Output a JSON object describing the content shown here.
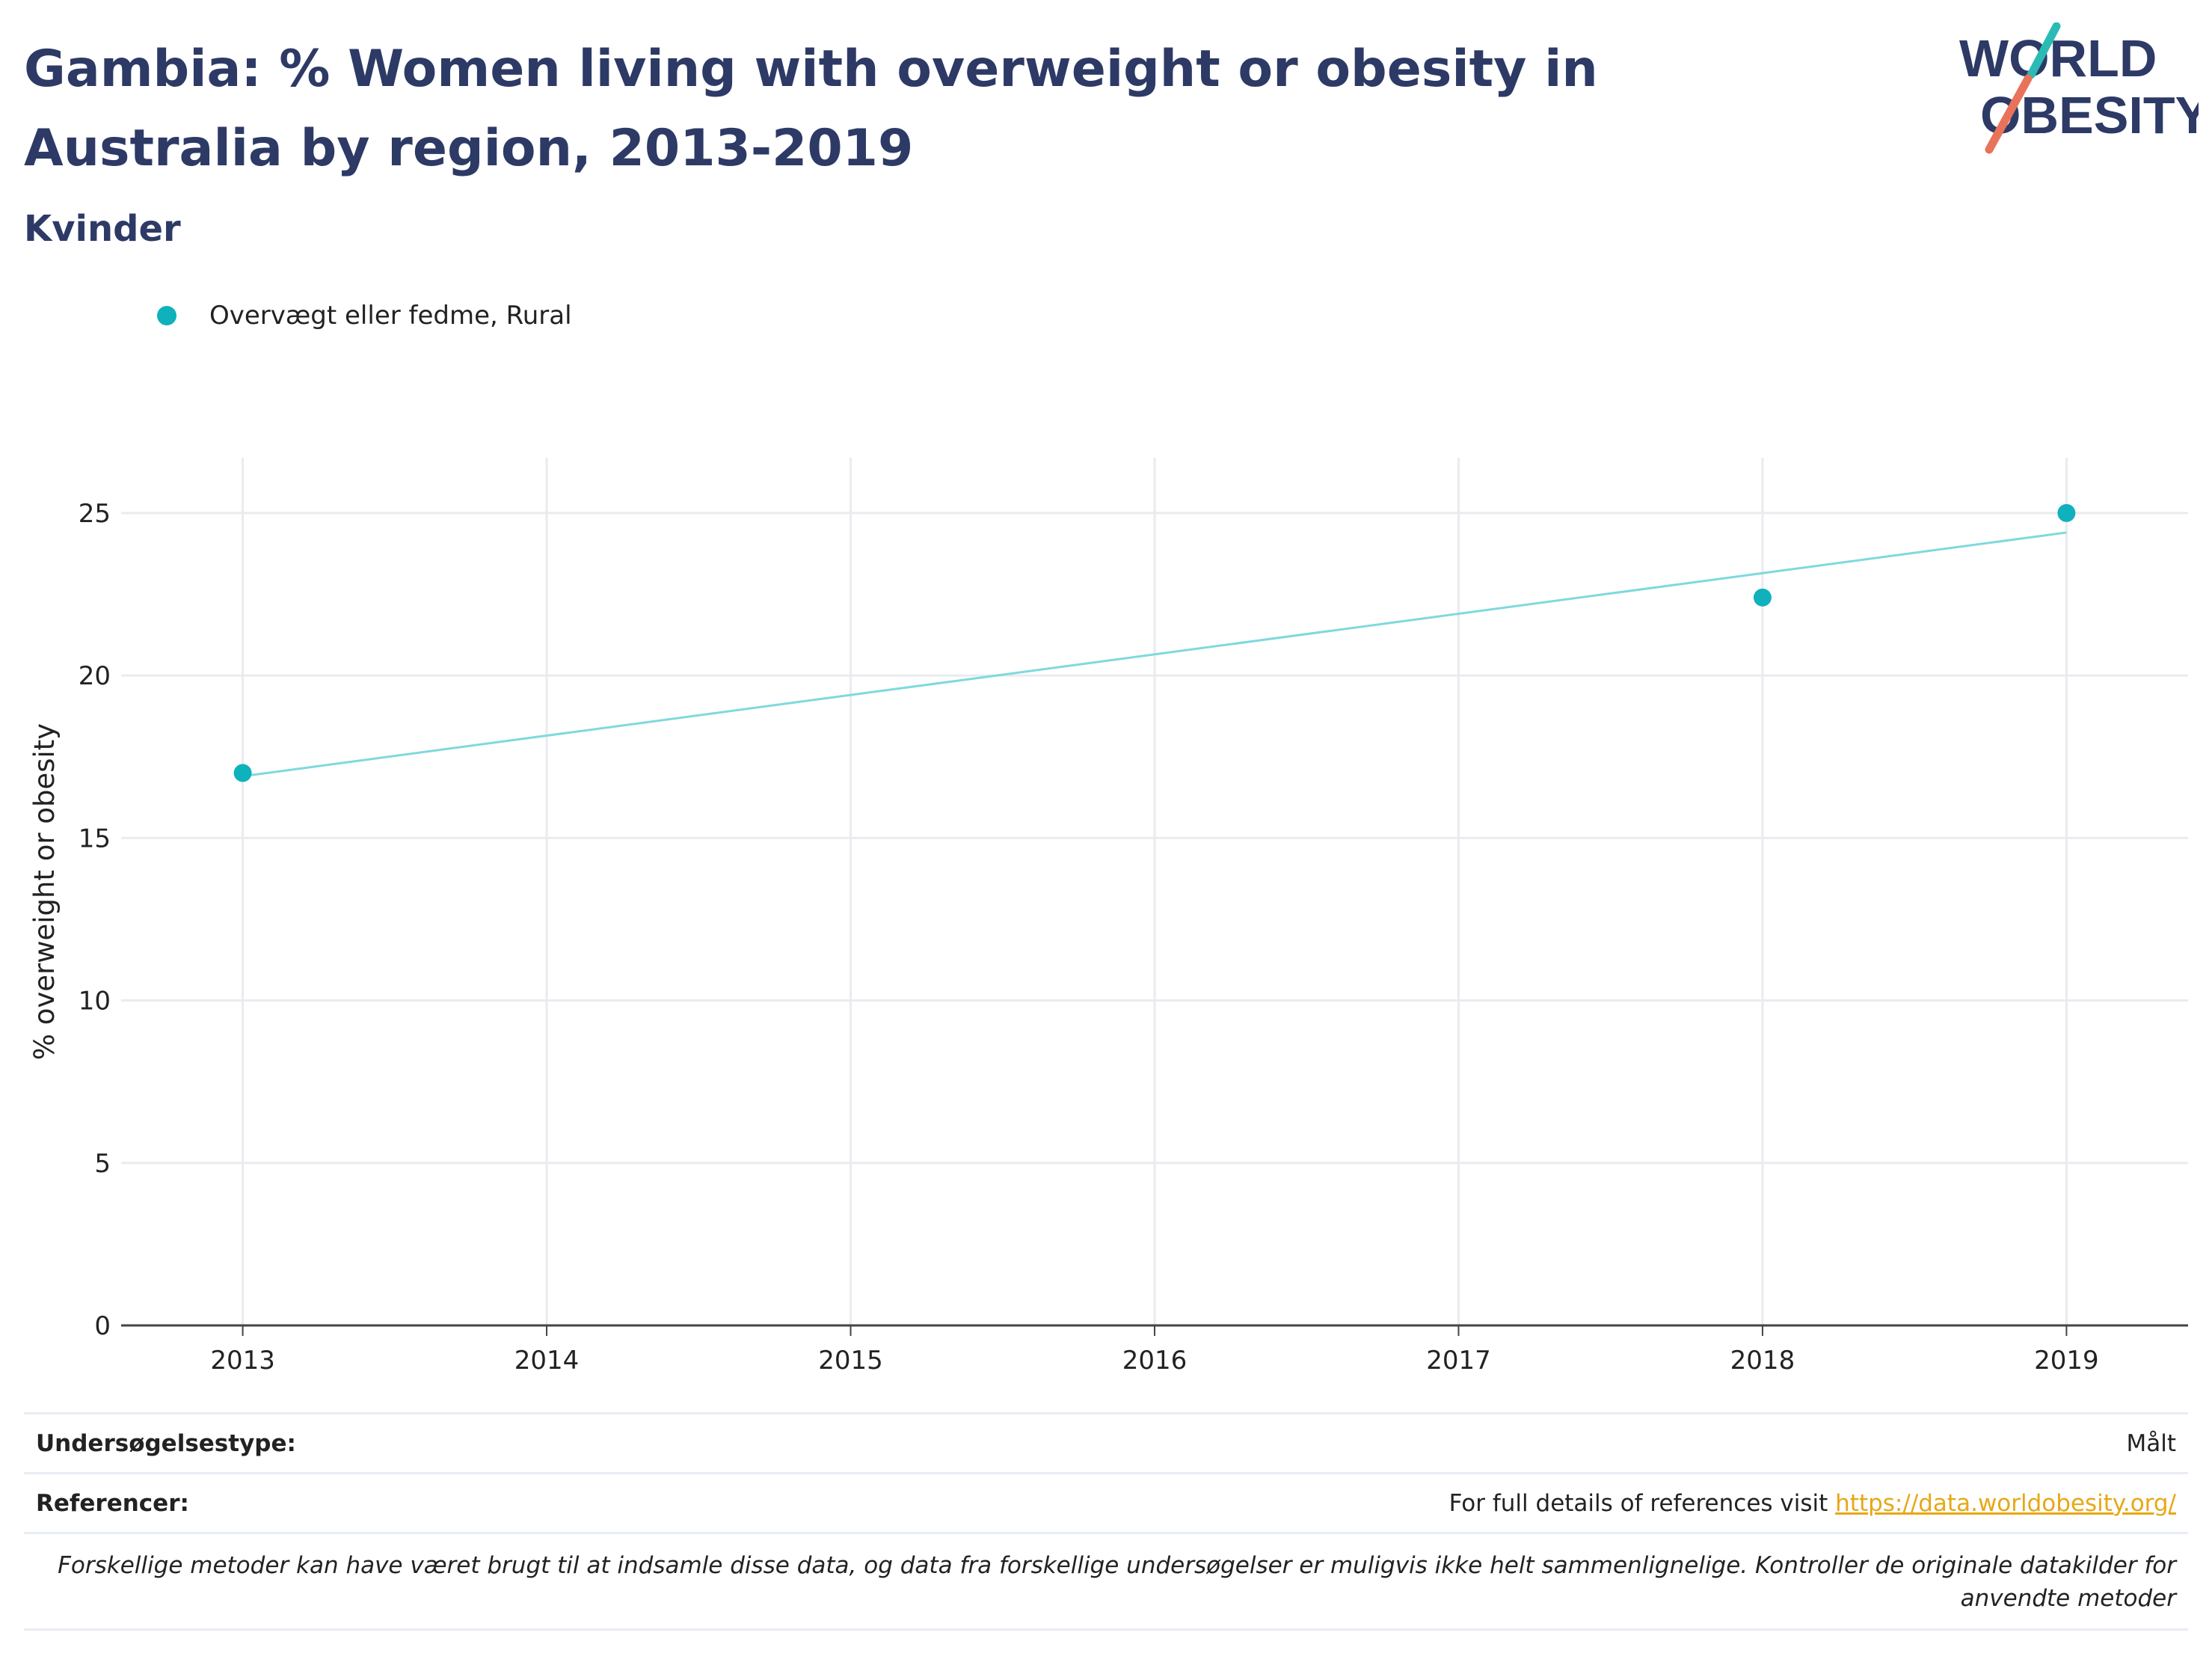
{
  "header": {
    "title": "Gambia: % Women living with overweight or obesity in Australia by region, 2013-2019",
    "subtitle": "Kvinder"
  },
  "logo": {
    "line1": "WORLD",
    "line2": "OBESITY",
    "accent_teal": "#2bbbb5",
    "accent_coral": "#e8735a",
    "text_color": "#2d3a66"
  },
  "chart_data": {
    "type": "scatter",
    "title": "Gambia: % Women living with overweight or obesity in Australia by region, 2013-2019",
    "subtitle": "Kvinder",
    "xlabel": "",
    "ylabel": "% overweight or obesity",
    "x_ticks": [
      2013,
      2014,
      2015,
      2016,
      2017,
      2018,
      2019
    ],
    "y_ticks": [
      0,
      5,
      10,
      15,
      20,
      25
    ],
    "xlim": [
      2012.6,
      2019.4
    ],
    "ylim": [
      0,
      26.7
    ],
    "grid": true,
    "legend_position": "top-left",
    "series": [
      {
        "name": "Overvægt eller fedme, Rural",
        "color": "#0fb1bd",
        "x": [
          2013,
          2018,
          2019
        ],
        "y": [
          17.0,
          22.4,
          25.0
        ]
      }
    ],
    "trendline": {
      "color": "#7fd9dc",
      "x": [
        2013,
        2019
      ],
      "y": [
        16.9,
        24.4
      ]
    }
  },
  "info": {
    "survey_label": "Undersøgelsestype:",
    "survey_value": "Målt",
    "references_label": "Referencer:",
    "references_text": "For full details of references visit ",
    "references_link": "https://data.worldobesity.org/",
    "note": "Forskellige metoder kan have været brugt til at indsamle disse data, og data fra forskellige undersøgelser er muligvis ikke helt sammenlignelige. Kontroller de originale datakilder for anvendte metoder"
  }
}
